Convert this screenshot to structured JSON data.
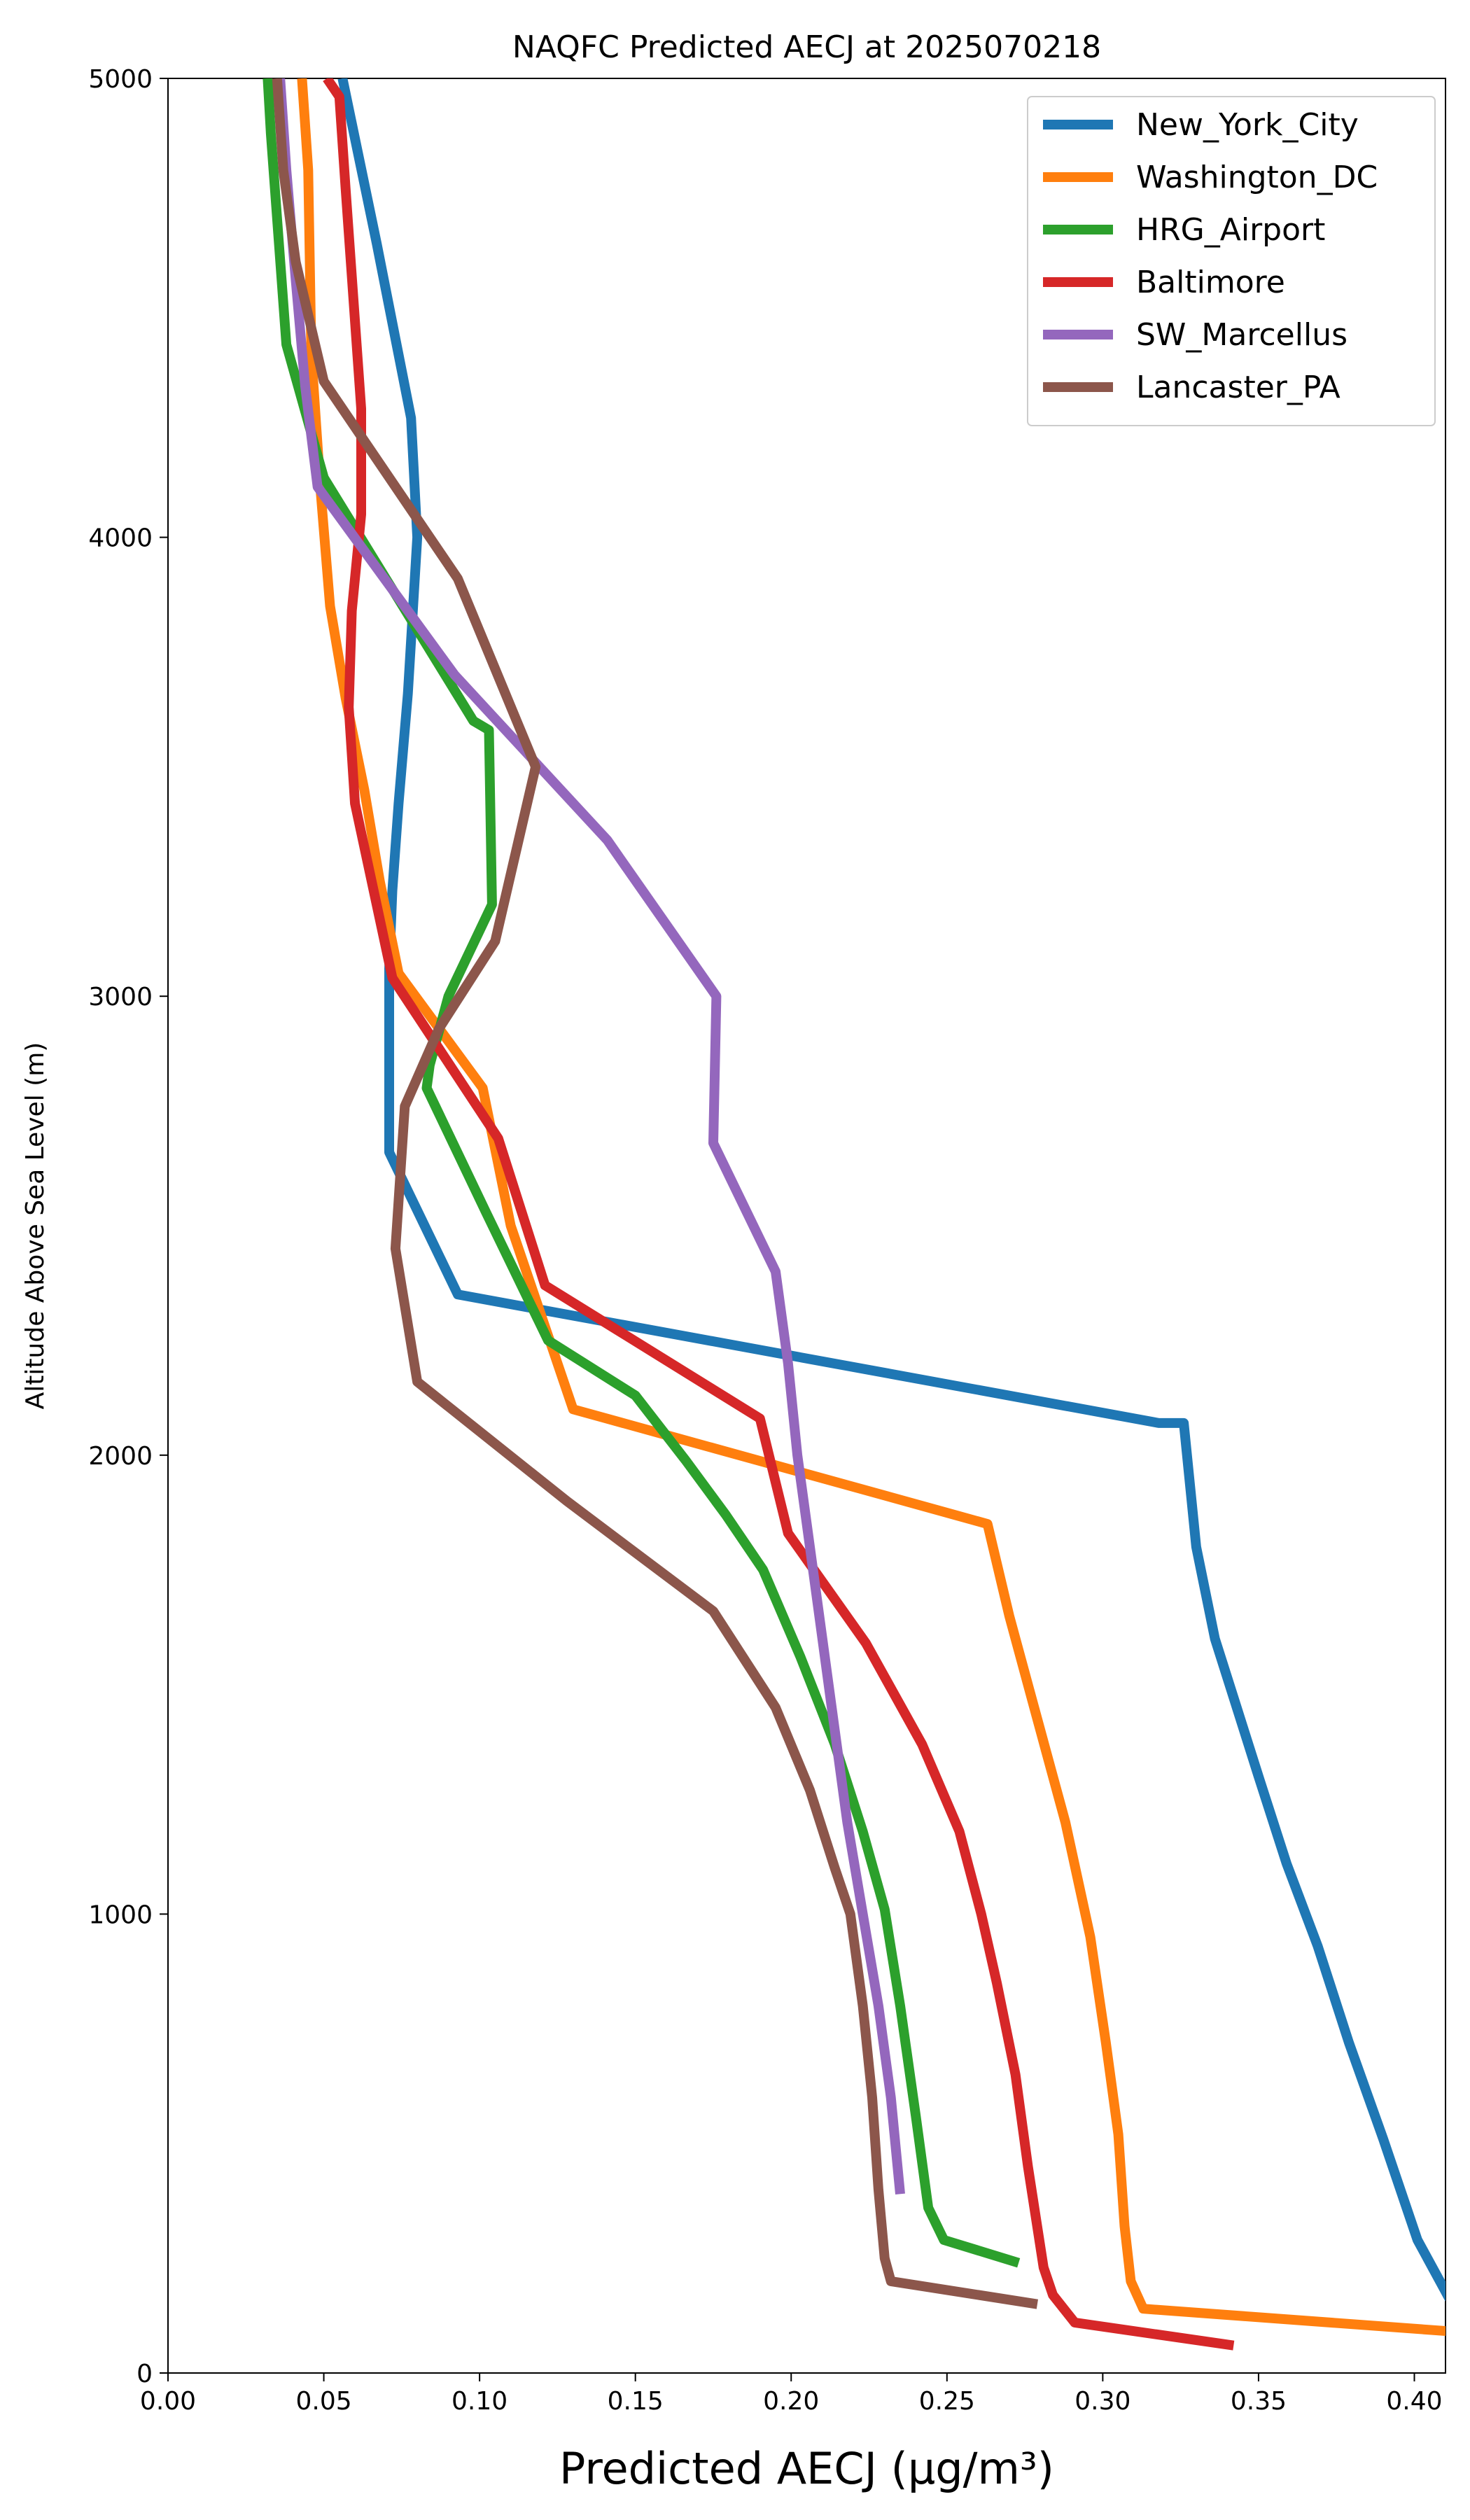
{
  "chart_data": {
    "type": "line",
    "title": "NAQFC Predicted AECJ at 2025070218",
    "xlabel": "Predicted AECJ (μg/m³)",
    "ylabel": "Altitude Above Sea Level (m)",
    "xlim": [
      0,
      0.41
    ],
    "ylim": [
      0,
      5000
    ],
    "xticks": [
      0.0,
      0.05,
      0.1,
      0.15,
      0.2,
      0.25,
      0.3,
      0.35,
      0.4
    ],
    "xtick_labels": [
      "0.00",
      "0.05",
      "0.10",
      "0.15",
      "0.20",
      "0.25",
      "0.30",
      "0.35",
      "0.40"
    ],
    "yticks": [
      0,
      1000,
      2000,
      3000,
      4000,
      5000
    ],
    "ytick_labels": [
      "0",
      "1000",
      "2000",
      "3000",
      "4000",
      "5000"
    ],
    "grid": false,
    "legend_position": "top-right",
    "series": [
      {
        "name": "New_York_City",
        "color": "#1f77b4",
        "x": [
          0.413,
          0.401,
          0.39,
          0.379,
          0.369,
          0.359,
          0.35,
          0.343,
          0.336,
          0.33,
          0.326,
          0.318,
          0.093,
          0.071,
          0.071,
          0.071,
          0.072,
          0.074,
          0.077,
          0.08,
          0.078,
          0.067,
          0.056
        ],
        "y": [
          140,
          290,
          510,
          720,
          930,
          1110,
          1300,
          1450,
          1600,
          1800,
          2070,
          2070,
          2350,
          2660,
          2900,
          3060,
          3230,
          3420,
          3660,
          4000,
          4260,
          4640,
          5000
        ]
      },
      {
        "name": "Washington_DC",
        "color": "#ff7f0e",
        "x": [
          0.413,
          0.313,
          0.309,
          0.307,
          0.305,
          0.301,
          0.296,
          0.288,
          0.278,
          0.27,
          0.263,
          0.13,
          0.11,
          0.101,
          0.074,
          0.068,
          0.063,
          0.057,
          0.052,
          0.049,
          0.046,
          0.045,
          0.043
        ],
        "y": [
          90,
          140,
          200,
          320,
          520,
          720,
          950,
          1200,
          1450,
          1650,
          1850,
          2100,
          2500,
          2800,
          3050,
          3250,
          3450,
          3650,
          3850,
          4100,
          4400,
          4800,
          5000
        ]
      },
      {
        "name": "HRG_Airport",
        "color": "#2ca02c",
        "x": [
          0.273,
          0.249,
          0.244,
          0.24,
          0.235,
          0.23,
          0.223,
          0.214,
          0.203,
          0.191,
          0.179,
          0.166,
          0.15,
          0.122,
          0.102,
          0.083,
          0.084,
          0.09,
          0.104,
          0.103,
          0.098,
          0.05,
          0.038,
          0.033,
          0.032
        ],
        "y": [
          240,
          290,
          360,
          560,
          800,
          1010,
          1180,
          1370,
          1560,
          1750,
          1870,
          1990,
          2130,
          2250,
          2530,
          2800,
          2850,
          3000,
          3200,
          3580,
          3600,
          4130,
          4420,
          4880,
          5000
        ]
      },
      {
        "name": "Baltimore",
        "color": "#d62728",
        "x": [
          0.342,
          0.291,
          0.284,
          0.281,
          0.276,
          0.272,
          0.266,
          0.261,
          0.254,
          0.242,
          0.224,
          0.199,
          0.19,
          0.121,
          0.106,
          0.072,
          0.06,
          0.058,
          0.059,
          0.062,
          0.062,
          0.057,
          0.055,
          0.051
        ],
        "y": [
          60,
          110,
          170,
          230,
          450,
          650,
          850,
          1000,
          1180,
          1370,
          1590,
          1830,
          2080,
          2370,
          2690,
          3040,
          3420,
          3630,
          3840,
          4050,
          4280,
          4760,
          4960,
          5000
        ]
      },
      {
        "name": "SW_Marcellus",
        "color": "#9467bd",
        "x": [
          0.235,
          0.232,
          0.228,
          0.223,
          0.218,
          0.214,
          0.21,
          0.206,
          0.202,
          0.199,
          0.195,
          0.175,
          0.176,
          0.141,
          0.092,
          0.048,
          0.044,
          0.041,
          0.038,
          0.036
        ],
        "y": [
          390,
          600,
          800,
          1000,
          1200,
          1400,
          1600,
          1800,
          2000,
          2200,
          2400,
          2680,
          3000,
          3340,
          3700,
          4110,
          4330,
          4560,
          4800,
          5000
        ]
      },
      {
        "name": "Lancaster_PA",
        "color": "#8c564b",
        "x": [
          0.279,
          0.232,
          0.23,
          0.228,
          0.226,
          0.223,
          0.219,
          0.214,
          0.206,
          0.195,
          0.175,
          0.128,
          0.08,
          0.073,
          0.076,
          0.087,
          0.105,
          0.118,
          0.093,
          0.05,
          0.041,
          0.037,
          0.035
        ],
        "y": [
          150,
          200,
          250,
          400,
          600,
          800,
          1000,
          1100,
          1270,
          1450,
          1660,
          1900,
          2160,
          2450,
          2760,
          2930,
          3120,
          3500,
          3910,
          4340,
          4600,
          4800,
          5000
        ]
      }
    ]
  }
}
